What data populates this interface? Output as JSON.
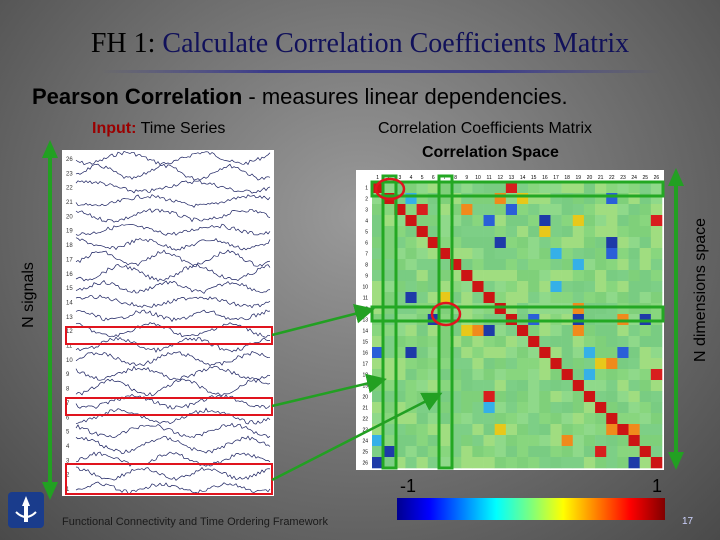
{
  "slide": {
    "title_lead": "FH 1:",
    "title_rest": "Calculate Correlation Coefficients Matrix",
    "subtitle_bold": "Pearson Correlation",
    "subtitle_rest": " - measures linear dependencies.",
    "input_key": "Input:",
    "input_rest": " Time Series",
    "ccm_label": "Correlation Coefficients Matrix",
    "space_label": "Correlation Space",
    "left_axis_label": "N signals",
    "right_axis_label": "N dimensions space",
    "colorbar_min": "-1",
    "colorbar_max": "1",
    "footer": "Functional Connectivity and Time Ordering Framework",
    "page_number": "17"
  },
  "colors": {
    "title": "#11115a",
    "input_key": "#9a0000",
    "highlight_green": "#1f9a1f",
    "highlight_red": "#e0141e",
    "arrow_green": "#22a022",
    "bracket_green": "#23a823"
  },
  "timeseries": {
    "channel_labels": [
      "26",
      "23",
      "22",
      "21",
      "20",
      "19",
      "18",
      "17",
      "16",
      "15",
      "14",
      "13",
      "12",
      "11",
      "10",
      "9",
      "8",
      "7",
      "6",
      "5",
      "4",
      "3",
      "2",
      "1"
    ]
  },
  "matrix": {
    "n": 26,
    "column_labels": [
      "1",
      "2",
      "3",
      "4",
      "5",
      "6",
      "7",
      "8",
      "9",
      "10",
      "11",
      "12",
      "13",
      "14",
      "15",
      "16",
      "17",
      "18",
      "19",
      "20",
      "21",
      "22",
      "23",
      "24",
      "25",
      "26"
    ],
    "row_labels": [
      "1",
      "2",
      "3",
      "4",
      "5",
      "6",
      "7",
      "8",
      "9",
      "10",
      "11",
      "12",
      "13",
      "14",
      "15",
      "16",
      "17",
      "18",
      "19",
      "20",
      "21",
      "22",
      "23",
      "24",
      "25",
      "26"
    ]
  }
}
